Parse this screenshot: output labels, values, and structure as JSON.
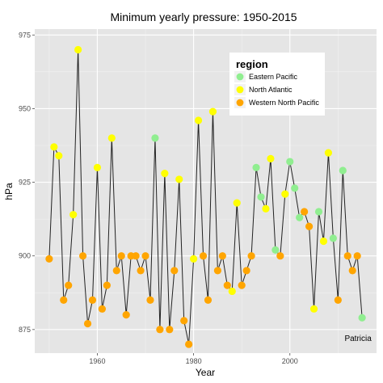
{
  "chart_data": {
    "type": "line",
    "title": "Minimum yearly pressure: 1950-2015",
    "xlabel": "Year",
    "ylabel": "hPa",
    "xlim": [
      1947,
      2018
    ],
    "ylim": [
      867,
      977
    ],
    "x_ticks": [
      1960,
      1980,
      2000
    ],
    "y_ticks": [
      875,
      900,
      925,
      950,
      975
    ],
    "grid": true,
    "legend": {
      "title": "region",
      "position": "top-right",
      "entries": [
        {
          "name": "Eastern Pacific",
          "color": "#90ee90"
        },
        {
          "name": "North Atlantic",
          "color": "#ffff00"
        },
        {
          "name": "Western North Pacific",
          "color": "#ffa500"
        }
      ]
    },
    "line_color": "#222222",
    "panel_color": "#e5e5e5",
    "annotation": {
      "text": "Patricia",
      "x": 2015,
      "y": 872
    },
    "points": [
      {
        "x": 1950,
        "y": 899,
        "region": "Western North Pacific"
      },
      {
        "x": 1951,
        "y": 937,
        "region": "North Atlantic"
      },
      {
        "x": 1952,
        "y": 934,
        "region": "North Atlantic"
      },
      {
        "x": 1953,
        "y": 885,
        "region": "Western North Pacific"
      },
      {
        "x": 1954,
        "y": 890,
        "region": "Western North Pacific"
      },
      {
        "x": 1955,
        "y": 914,
        "region": "North Atlantic"
      },
      {
        "x": 1956,
        "y": 970,
        "region": "North Atlantic"
      },
      {
        "x": 1957,
        "y": 900,
        "region": "Western North Pacific"
      },
      {
        "x": 1958,
        "y": 877,
        "region": "Western North Pacific"
      },
      {
        "x": 1959,
        "y": 885,
        "region": "Western North Pacific"
      },
      {
        "x": 1960,
        "y": 930,
        "region": "North Atlantic"
      },
      {
        "x": 1961,
        "y": 882,
        "region": "Western North Pacific"
      },
      {
        "x": 1962,
        "y": 890,
        "region": "Western North Pacific"
      },
      {
        "x": 1963,
        "y": 940,
        "region": "North Atlantic"
      },
      {
        "x": 1964,
        "y": 895,
        "region": "Western North Pacific"
      },
      {
        "x": 1965,
        "y": 900,
        "region": "Western North Pacific"
      },
      {
        "x": 1966,
        "y": 880,
        "region": "Western North Pacific"
      },
      {
        "x": 1967,
        "y": 900,
        "region": "Western North Pacific"
      },
      {
        "x": 1968,
        "y": 900,
        "region": "Western North Pacific"
      },
      {
        "x": 1969,
        "y": 895,
        "region": "Western North Pacific"
      },
      {
        "x": 1970,
        "y": 900,
        "region": "Western North Pacific"
      },
      {
        "x": 1971,
        "y": 885,
        "region": "Western North Pacific"
      },
      {
        "x": 1972,
        "y": 940,
        "region": "Eastern Pacific"
      },
      {
        "x": 1973,
        "y": 875,
        "region": "Western North Pacific"
      },
      {
        "x": 1974,
        "y": 928,
        "region": "North Atlantic"
      },
      {
        "x": 1975,
        "y": 875,
        "region": "Western North Pacific"
      },
      {
        "x": 1976,
        "y": 895,
        "region": "Western North Pacific"
      },
      {
        "x": 1977,
        "y": 926,
        "region": "North Atlantic"
      },
      {
        "x": 1978,
        "y": 878,
        "region": "Western North Pacific"
      },
      {
        "x": 1979,
        "y": 870,
        "region": "Western North Pacific"
      },
      {
        "x": 1980,
        "y": 899,
        "region": "North Atlantic"
      },
      {
        "x": 1981,
        "y": 946,
        "region": "North Atlantic"
      },
      {
        "x": 1982,
        "y": 900,
        "region": "Western North Pacific"
      },
      {
        "x": 1983,
        "y": 885,
        "region": "Western North Pacific"
      },
      {
        "x": 1984,
        "y": 949,
        "region": "North Atlantic"
      },
      {
        "x": 1985,
        "y": 895,
        "region": "Western North Pacific"
      },
      {
        "x": 1986,
        "y": 900,
        "region": "Western North Pacific"
      },
      {
        "x": 1987,
        "y": 890,
        "region": "Western North Pacific"
      },
      {
        "x": 1988,
        "y": 888,
        "region": "North Atlantic"
      },
      {
        "x": 1989,
        "y": 918,
        "region": "North Atlantic"
      },
      {
        "x": 1990,
        "y": 890,
        "region": "Western North Pacific"
      },
      {
        "x": 1991,
        "y": 895,
        "region": "Western North Pacific"
      },
      {
        "x": 1992,
        "y": 900,
        "region": "Western North Pacific"
      },
      {
        "x": 1993,
        "y": 930,
        "region": "Eastern Pacific"
      },
      {
        "x": 1994,
        "y": 920,
        "region": "Eastern Pacific"
      },
      {
        "x": 1995,
        "y": 916,
        "region": "North Atlantic"
      },
      {
        "x": 1996,
        "y": 933,
        "region": "North Atlantic"
      },
      {
        "x": 1997,
        "y": 902,
        "region": "Eastern Pacific"
      },
      {
        "x": 1998,
        "y": 900,
        "region": "Western North Pacific"
      },
      {
        "x": 1999,
        "y": 921,
        "region": "North Atlantic"
      },
      {
        "x": 2000,
        "y": 932,
        "region": "Eastern Pacific"
      },
      {
        "x": 2001,
        "y": 923,
        "region": "Eastern Pacific"
      },
      {
        "x": 2002,
        "y": 913,
        "region": "Eastern Pacific"
      },
      {
        "x": 2003,
        "y": 915,
        "region": "Western North Pacific"
      },
      {
        "x": 2004,
        "y": 910,
        "region": "Western North Pacific"
      },
      {
        "x": 2005,
        "y": 882,
        "region": "North Atlantic"
      },
      {
        "x": 2006,
        "y": 915,
        "region": "Eastern Pacific"
      },
      {
        "x": 2007,
        "y": 905,
        "region": "North Atlantic"
      },
      {
        "x": 2008,
        "y": 935,
        "region": "North Atlantic"
      },
      {
        "x": 2009,
        "y": 906,
        "region": "Eastern Pacific"
      },
      {
        "x": 2010,
        "y": 885,
        "region": "Western North Pacific"
      },
      {
        "x": 2011,
        "y": 929,
        "region": "Eastern Pacific"
      },
      {
        "x": 2012,
        "y": 900,
        "region": "Western North Pacific"
      },
      {
        "x": 2013,
        "y": 895,
        "region": "Western North Pacific"
      },
      {
        "x": 2014,
        "y": 900,
        "region": "Western North Pacific"
      },
      {
        "x": 2015,
        "y": 879,
        "region": "Eastern Pacific"
      }
    ]
  }
}
